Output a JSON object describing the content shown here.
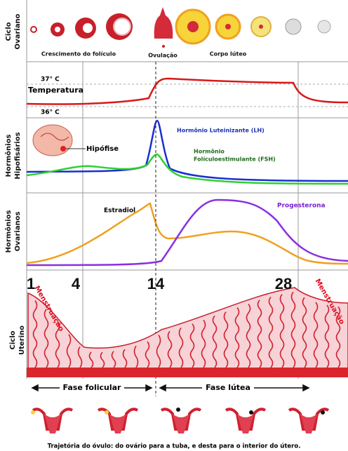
{
  "ovarian_cycle": {
    "label": [
      "Ciclo",
      "Ovariano"
    ],
    "captions": [
      "Crescimento do folículo",
      "Ovulação",
      "Corpo lúteo"
    ]
  },
  "temperature": {
    "label": "Temperatura",
    "high": "37° C",
    "low": "36° C"
  },
  "pituitary_hormones": {
    "label": [
      "Hormônios",
      "Hipofisários"
    ],
    "gland": "Hipófise",
    "lh": "Hormônio Luteinizante (LH)",
    "fsh": [
      "Hormônio",
      "Folículoestimulante (FSH)"
    ]
  },
  "ovarian_hormones": {
    "label": [
      "Hormônios",
      "Ovarianos"
    ],
    "estradiol": "Estradiol",
    "progesterone": "Progesterona"
  },
  "uterine_cycle": {
    "label": [
      "Ciclo",
      "Uterino"
    ],
    "days": [
      "1",
      "4",
      "14",
      "28"
    ],
    "menstruation": [
      "Menstruação",
      "Menstruação"
    ],
    "phases": [
      "Fase folicular",
      "Fase lútea"
    ]
  },
  "caption": "Trajetória do óvulo: do ovário para a tuba, e desta para o interior do útero."
}
